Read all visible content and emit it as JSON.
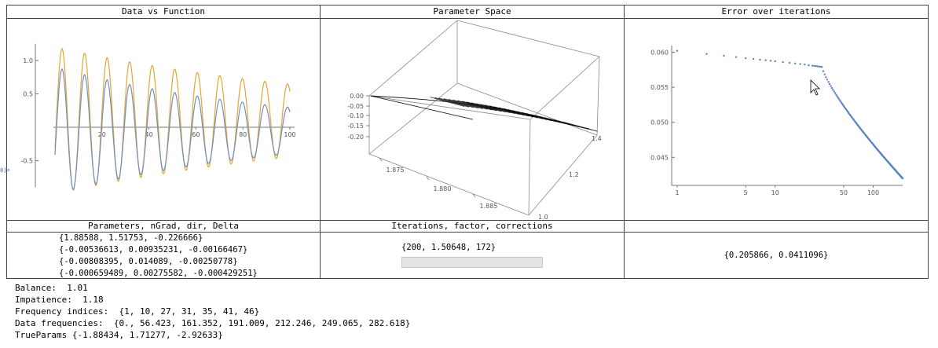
{
  "panels": {
    "data_vs_function": {
      "title": "Data vs Function"
    },
    "parameter_space": {
      "title": "Parameter Space"
    },
    "error_over_iterations": {
      "title": "Error over iterations"
    },
    "parameters_table": {
      "title": "Parameters, nGrad, dir, Delta",
      "rows": [
        "{1.88588, 1.51753, -0.226666}",
        "{-0.00536613, 0.00935231, -0.00166467}",
        "{-0.00808395, 0.014089, -0.00250778}",
        "{-0.000659489, 0.00275582, -0.000429251}"
      ]
    },
    "iterations": {
      "title": "Iterations, factor, corrections",
      "value": "{200, 1.50648, 172}",
      "progress_fraction": 0.0
    },
    "result": {
      "title": "",
      "value": "{0.205866, 0.0411096}"
    }
  },
  "side_marker": "8]=",
  "info": {
    "balance": "Balance:  1.01",
    "impatience": "Impatience:  1.18",
    "frequency_indices": "Frequency indices:  {1, 10, 27, 31, 35, 41, 46}",
    "data_frequencies": "Data frequencies:  {0., 56.423, 161.352, 191.009, 212.246, 249.065, 282.618}",
    "true_params": "TrueParams {-1.88434, 1.71277, -2.92633}"
  },
  "colors": {
    "data": "#e6a530",
    "function": "#6e8fc6",
    "error_points": "#5b82c3",
    "grid_border": "#444444"
  },
  "chart_data": [
    {
      "type": "line",
      "x_ticks": [
        20,
        40,
        60,
        80,
        100
      ],
      "y_ticks": [
        -0.5,
        0.5,
        1.0
      ],
      "xlim": [
        0,
        100
      ],
      "ylim": [
        -0.9,
        1.25
      ],
      "series": [
        {
          "color": "#e6a530",
          "amplitude": 1.1,
          "decay": 0.007,
          "period": 9.6,
          "offset": 0.1
        },
        {
          "color": "#6e8fc6",
          "amplitude": 0.95,
          "decay": 0.01,
          "period": 9.6,
          "offset": -0.05
        }
      ]
    },
    {
      "type": "scatter",
      "x_ticks": [
        "1.875",
        "1.880",
        "1.885"
      ],
      "y_ticks": [
        "1.0",
        "1.2",
        "1.4"
      ],
      "z_ticks": [
        "0.00",
        "-0.05",
        "-0.10",
        "-0.15",
        "-0.20"
      ]
    },
    {
      "type": "scatter",
      "x_scale": "log",
      "x_ticks": [
        "1",
        "5",
        "10",
        "50",
        "100"
      ],
      "y_ticks": [
        "0.045",
        "0.050",
        "0.055",
        "0.060"
      ],
      "xlim": [
        1,
        200
      ],
      "ylim": [
        0.041,
        0.0605
      ]
    }
  ]
}
